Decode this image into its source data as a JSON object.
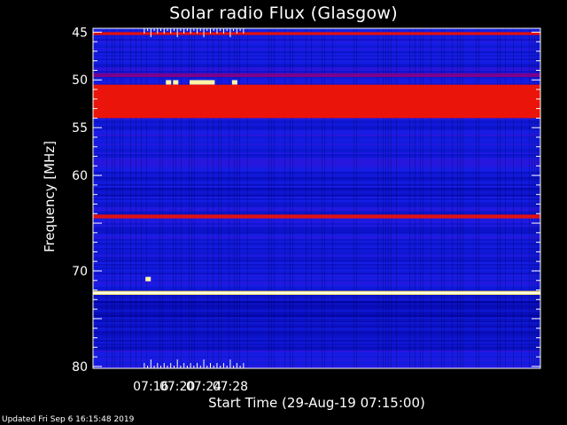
{
  "chart_data": {
    "type": "heatmap",
    "title": "Solar radio Flux (Glasgow)",
    "xlabel": "Start Time (29-Aug-19 07:15:00)",
    "ylabel": "Frequency [MHz]",
    "footer": "Updated Fri Sep  6 16:15:48 2019",
    "x_range_minutes": [
      7.25,
      74.9
    ],
    "y_range_mhz": [
      44.6,
      80.2
    ],
    "y_ticks": [
      45,
      50,
      55,
      60,
      65,
      70,
      75,
      80
    ],
    "y_tick_labels": [
      "45",
      "50",
      "55",
      "60",
      "",
      "70",
      "",
      "80"
    ],
    "x_ticks": [
      436,
      440,
      444,
      448
    ],
    "x_tick_labels": [
      "07:16",
      "07:20",
      "07:24",
      "07:28"
    ],
    "colormap": "blue-red-yellow-white",
    "intensity_bands": [
      {
        "freq_mhz": [
          45.0,
          45.3
        ],
        "level": 0.72
      },
      {
        "freq_mhz": [
          49.3,
          49.7
        ],
        "level": 0.55
      },
      {
        "freq_mhz": [
          50.5,
          54.0
        ],
        "level": 0.74
      },
      {
        "freq_mhz": [
          64.1,
          64.5
        ],
        "level": 0.72
      },
      {
        "freq_mhz": [
          72.1,
          72.5
        ],
        "level": 0.95
      }
    ],
    "bursts": [
      {
        "time": "07:18:40",
        "freq_mhz": 50.3
      },
      {
        "time": "07:19:45",
        "freq_mhz": 50.3
      },
      {
        "time": "07:22:15",
        "freq_mhz": 50.3
      },
      {
        "time": "07:22:45",
        "freq_mhz": 50.3
      },
      {
        "time": "07:23:15",
        "freq_mhz": 50.3
      },
      {
        "time": "07:23:45",
        "freq_mhz": 50.3
      },
      {
        "time": "07:24:15",
        "freq_mhz": 50.3
      },
      {
        "time": "07:24:45",
        "freq_mhz": 50.3
      },
      {
        "time": "07:25:15",
        "freq_mhz": 50.3
      },
      {
        "time": "07:28:40",
        "freq_mhz": 50.3
      },
      {
        "time": "07:15:35",
        "freq_mhz": 70.9
      }
    ]
  }
}
